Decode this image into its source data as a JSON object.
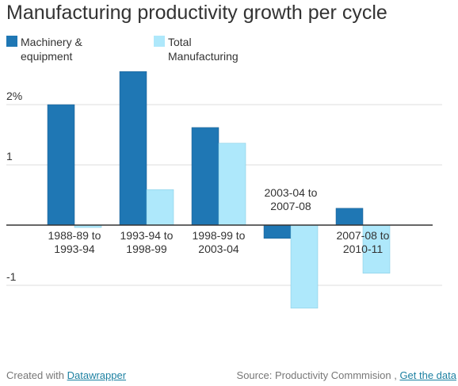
{
  "chart_data": {
    "type": "bar",
    "title": "Manufacturing productivity growth per cycle",
    "categories": [
      [
        "1988-89 to",
        "1993-94"
      ],
      [
        "1993-94 to",
        "1998-99"
      ],
      [
        "1998-99 to",
        "2003-04"
      ],
      [
        "2003-04 to",
        "2007-08"
      ],
      [
        "2007-08 to",
        "2010-11"
      ]
    ],
    "series": [
      {
        "name": "Machinery & equipment",
        "legend_lines": [
          "Machinery &",
          "equipment"
        ],
        "color": "#1f77b4",
        "values": [
          2.0,
          2.55,
          1.62,
          -0.22,
          0.28
        ]
      },
      {
        "name": "Total Manufacturing",
        "legend_lines": [
          "Total",
          "Manufacturing"
        ],
        "color": "#aee8fb",
        "values": [
          -0.04,
          0.59,
          1.36,
          -1.38,
          -0.8
        ]
      }
    ],
    "yticks": [
      {
        "value": 2,
        "label": "2%"
      },
      {
        "value": 1,
        "label": "1"
      },
      {
        "value": -1,
        "label": "-1"
      }
    ],
    "ylim": [
      -2.2,
      3.0
    ],
    "xlabel": "",
    "ylabel": "",
    "grid": true,
    "legend_position": "top-left"
  },
  "footer": {
    "created_prefix": "Created with",
    "created_link": "Datawrapper",
    "source_prefix": "Source: Productivity Commmision ,",
    "source_link": "Get the data"
  }
}
